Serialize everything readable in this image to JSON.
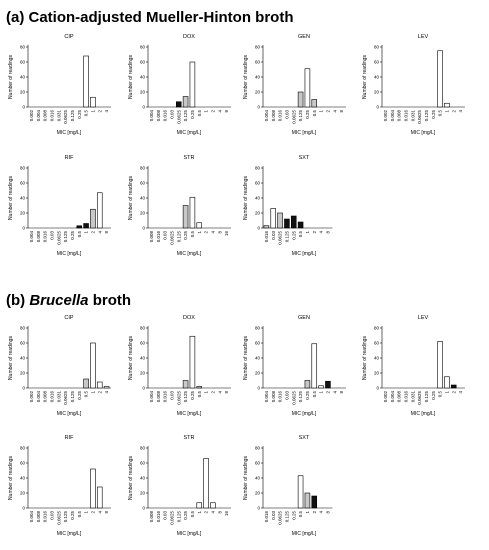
{
  "panels": [
    {
      "title_prefix": "(a) ",
      "title_italic": "",
      "title_rest": "Cation-adjusted Mueller-Hinton broth"
    },
    {
      "title_prefix": "(b) ",
      "title_italic": "Brucella",
      "title_rest": " broth"
    }
  ],
  "colors": {
    "light": "#ffffff",
    "intermediate": "#c8c8c8",
    "resistant": "#111111"
  },
  "chart_data": [
    {
      "type": "bar",
      "panel": "a",
      "title": "CIP",
      "ylabel": "Number of readings",
      "xlabel": "MIC [mg/L]",
      "ylim": [
        0,
        80
      ],
      "yticks": [
        0,
        20,
        40,
        60,
        80
      ],
      "categories": [
        "0.002",
        "0.004",
        "0.008",
        "0.016",
        "0.031",
        "0.0625",
        "0.125",
        "0.25",
        "0.5",
        "1",
        "2",
        "4"
      ],
      "values": [
        0,
        0,
        0,
        0,
        0,
        0,
        0,
        0,
        68,
        13,
        0,
        0
      ],
      "fills": [
        "light",
        "light",
        "light",
        "light",
        "light",
        "light",
        "light",
        "light",
        "light",
        "light",
        "light",
        "light"
      ]
    },
    {
      "type": "bar",
      "panel": "a",
      "title": "DOX",
      "ylabel": "Number of readings",
      "xlabel": "MIC [mg/L]",
      "ylim": [
        0,
        80
      ],
      "yticks": [
        0,
        20,
        40,
        60,
        80
      ],
      "categories": [
        "0.004",
        "0.008",
        "0.016",
        "0.03",
        "0.0625",
        "0.125",
        "0.25",
        "0.5",
        "1",
        "2",
        "4",
        "8"
      ],
      "values": [
        0,
        0,
        0,
        0,
        7,
        14,
        60,
        0,
        0,
        0,
        0,
        0
      ],
      "fills": [
        "light",
        "light",
        "light",
        "light",
        "resistant",
        "intermediate",
        "light",
        "light",
        "light",
        "light",
        "light",
        "light"
      ]
    },
    {
      "type": "bar",
      "panel": "a",
      "title": "GEN",
      "ylabel": "Number of readings",
      "xlabel": "MIC [mg/L]",
      "ylim": [
        0,
        80
      ],
      "yticks": [
        0,
        20,
        40,
        60,
        80
      ],
      "categories": [
        "0.004",
        "0.008",
        "0.016",
        "0.03",
        "0.0625",
        "0.125",
        "0.25",
        "0.5",
        "1",
        "2",
        "4",
        "8"
      ],
      "values": [
        0,
        0,
        0,
        0,
        0,
        20,
        51,
        10,
        0,
        0,
        0,
        0
      ],
      "fills": [
        "light",
        "light",
        "light",
        "light",
        "light",
        "intermediate",
        "light",
        "intermediate",
        "light",
        "light",
        "light",
        "light"
      ]
    },
    {
      "type": "bar",
      "panel": "a",
      "title": "LEV",
      "ylabel": "Number of readings",
      "xlabel": "MIC [mg/L]",
      "ylim": [
        0,
        80
      ],
      "yticks": [
        0,
        20,
        40,
        60,
        80
      ],
      "categories": [
        "0.002",
        "0.004",
        "0.008",
        "0.016",
        "0.031",
        "0.0625",
        "0.125",
        "0.25",
        "0.5",
        "1",
        "2",
        "4"
      ],
      "values": [
        0,
        0,
        0,
        0,
        0,
        0,
        0,
        0,
        75,
        5,
        0,
        0
      ],
      "fills": [
        "light",
        "light",
        "light",
        "light",
        "light",
        "light",
        "light",
        "light",
        "light",
        "light",
        "light",
        "light"
      ]
    },
    {
      "type": "bar",
      "panel": "a",
      "title": "RIF",
      "ylabel": "Number of readings",
      "xlabel": "MIC [mg/L]",
      "ylim": [
        0,
        80
      ],
      "yticks": [
        0,
        20,
        40,
        60,
        80
      ],
      "categories": [
        "0.004",
        "0.008",
        "0.016",
        "0.03",
        "0.0625",
        "0.125",
        "0.25",
        "0.5",
        "1",
        "2",
        "4",
        "8"
      ],
      "values": [
        0,
        0,
        0,
        0,
        0,
        0,
        0,
        3,
        6,
        25,
        47,
        0
      ],
      "fills": [
        "light",
        "light",
        "light",
        "light",
        "light",
        "light",
        "light",
        "resistant",
        "resistant",
        "intermediate",
        "light",
        "light"
      ]
    },
    {
      "type": "bar",
      "panel": "a",
      "title": "STR",
      "ylabel": "Number of readings",
      "xlabel": "MIC [mg/L]",
      "ylim": [
        0,
        80
      ],
      "yticks": [
        0,
        20,
        40,
        60,
        80
      ],
      "categories": [
        "0.008",
        "0.016",
        "0.03",
        "0.0625",
        "0.125",
        "0.25",
        "0.5",
        "1",
        "2",
        "4",
        "8",
        "16"
      ],
      "values": [
        0,
        0,
        0,
        0,
        0,
        30,
        41,
        7,
        0,
        0,
        0,
        0
      ],
      "fills": [
        "light",
        "light",
        "light",
        "light",
        "light",
        "intermediate",
        "light",
        "light",
        "light",
        "light",
        "light",
        "light"
      ]
    },
    {
      "type": "bar",
      "panel": "a",
      "title": "SXT",
      "ylabel": "Number of readings",
      "xlabel": "MIC [mg/L]",
      "ylim": [
        0,
        80
      ],
      "yticks": [
        0,
        20,
        40,
        60,
        80
      ],
      "categories": [
        "0.016",
        "0.03",
        "0.0625",
        "0.125",
        "0.25",
        "0.5",
        "1",
        "2",
        "4",
        "8"
      ],
      "values": [
        3,
        26,
        20,
        12,
        16,
        8,
        0,
        0,
        0,
        0
      ],
      "fills": [
        "intermediate",
        "light",
        "intermediate",
        "resistant",
        "resistant",
        "resistant",
        "light",
        "light",
        "light",
        "light"
      ]
    },
    {
      "type": "bar",
      "panel": "b",
      "title": "CIP",
      "ylabel": "Number of readings",
      "xlabel": "MIC [mg/L]",
      "ylim": [
        0,
        80
      ],
      "yticks": [
        0,
        20,
        40,
        60,
        80
      ],
      "categories": [
        "0.002",
        "0.004",
        "0.008",
        "0.016",
        "0.031",
        "0.0625",
        "0.125",
        "0.25",
        "0.5",
        "1",
        "2",
        "4"
      ],
      "values": [
        0,
        0,
        0,
        0,
        0,
        0,
        0,
        0,
        12,
        60,
        8,
        2
      ],
      "fills": [
        "light",
        "light",
        "light",
        "light",
        "light",
        "light",
        "light",
        "light",
        "intermediate",
        "light",
        "light",
        "light"
      ]
    },
    {
      "type": "bar",
      "panel": "b",
      "title": "DOX",
      "ylabel": "Number of readings",
      "xlabel": "MIC [mg/L]",
      "ylim": [
        0,
        80
      ],
      "yticks": [
        0,
        20,
        40,
        60,
        80
      ],
      "categories": [
        "0.004",
        "0.008",
        "0.016",
        "0.03",
        "0.0625",
        "0.125",
        "0.25",
        "0.5",
        "1",
        "2",
        "4",
        "8"
      ],
      "values": [
        0,
        0,
        0,
        0,
        0,
        10,
        69,
        2,
        0,
        0,
        0,
        0
      ],
      "fills": [
        "light",
        "light",
        "light",
        "light",
        "light",
        "intermediate",
        "light",
        "intermediate",
        "light",
        "light",
        "light",
        "light"
      ]
    },
    {
      "type": "bar",
      "panel": "b",
      "title": "GEN",
      "ylabel": "Number of readings",
      "xlabel": "MIC [mg/L]",
      "ylim": [
        0,
        80
      ],
      "yticks": [
        0,
        20,
        40,
        60,
        80
      ],
      "categories": [
        "0.004",
        "0.008",
        "0.016",
        "0.03",
        "0.0625",
        "0.125",
        "0.25",
        "0.5",
        "1",
        "2",
        "4",
        "8"
      ],
      "values": [
        0,
        0,
        0,
        0,
        0,
        0,
        10,
        59,
        3,
        9,
        0,
        0
      ],
      "fills": [
        "light",
        "light",
        "light",
        "light",
        "light",
        "light",
        "intermediate",
        "light",
        "light",
        "resistant",
        "light",
        "light"
      ]
    },
    {
      "type": "bar",
      "panel": "b",
      "title": "LEV",
      "ylabel": "Number of readings",
      "xlabel": "MIC [mg/L]",
      "ylim": [
        0,
        80
      ],
      "yticks": [
        0,
        20,
        40,
        60,
        80
      ],
      "categories": [
        "0.002",
        "0.004",
        "0.008",
        "0.016",
        "0.031",
        "0.0625",
        "0.125",
        "0.25",
        "0.5",
        "1",
        "2",
        "4"
      ],
      "values": [
        0,
        0,
        0,
        0,
        0,
        0,
        0,
        0,
        62,
        15,
        4,
        0
      ],
      "fills": [
        "light",
        "light",
        "light",
        "light",
        "light",
        "light",
        "light",
        "light",
        "light",
        "light",
        "resistant",
        "light"
      ]
    },
    {
      "type": "bar",
      "panel": "b",
      "title": "RIF",
      "ylabel": "Number of readings",
      "xlabel": "MIC [mg/L]",
      "ylim": [
        0,
        80
      ],
      "yticks": [
        0,
        20,
        40,
        60,
        80
      ],
      "categories": [
        "0.004",
        "0.008",
        "0.016",
        "0.03",
        "0.0625",
        "0.125",
        "0.25",
        "0.5",
        "1",
        "2",
        "4",
        "8"
      ],
      "values": [
        0,
        0,
        0,
        0,
        0,
        0,
        0,
        0,
        0,
        52,
        28,
        0
      ],
      "fills": [
        "light",
        "light",
        "light",
        "light",
        "light",
        "light",
        "light",
        "light",
        "light",
        "light",
        "light",
        "light"
      ]
    },
    {
      "type": "bar",
      "panel": "b",
      "title": "STR",
      "ylabel": "Number of readings",
      "xlabel": "MIC [mg/L]",
      "ylim": [
        0,
        80
      ],
      "yticks": [
        0,
        20,
        40,
        60,
        80
      ],
      "categories": [
        "0.008",
        "0.016",
        "0.03",
        "0.0625",
        "0.125",
        "0.25",
        "0.5",
        "1",
        "2",
        "4",
        "8",
        "16"
      ],
      "values": [
        0,
        0,
        0,
        0,
        0,
        0,
        0,
        7,
        66,
        7,
        0,
        0
      ],
      "fills": [
        "light",
        "light",
        "light",
        "light",
        "light",
        "light",
        "light",
        "light",
        "light",
        "light",
        "light",
        "light"
      ]
    },
    {
      "type": "bar",
      "panel": "b",
      "title": "SXT",
      "ylabel": "Number of readings",
      "xlabel": "MIC [mg/L]",
      "ylim": [
        0,
        80
      ],
      "yticks": [
        0,
        20,
        40,
        60,
        80
      ],
      "categories": [
        "0.016",
        "0.03",
        "0.0625",
        "0.125",
        "0.25",
        "0.5",
        "1",
        "2",
        "4",
        "8"
      ],
      "values": [
        0,
        0,
        0,
        0,
        0,
        43,
        20,
        16,
        0,
        0
      ],
      "fills": [
        "light",
        "light",
        "light",
        "light",
        "light",
        "light",
        "intermediate",
        "resistant",
        "light",
        "light"
      ]
    }
  ]
}
